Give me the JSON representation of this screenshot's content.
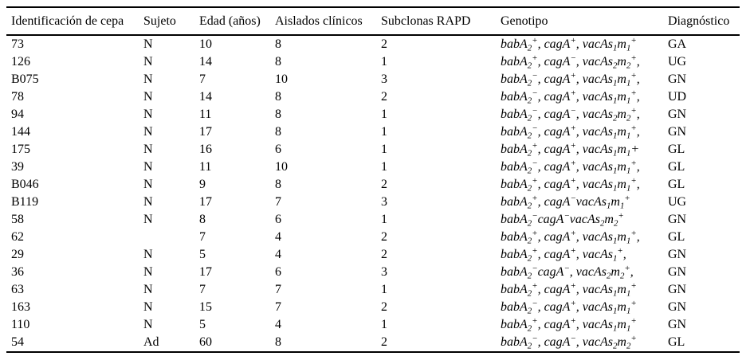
{
  "colors": {
    "text": "#000000",
    "background": "#ffffff",
    "rule": "#000000"
  },
  "table": {
    "columns": [
      "Identificación de cepa",
      "Sujeto",
      "Edad (años)",
      "Aislados clínicos",
      "Subclonas RAPD",
      "Genotipo",
      "Diagnóstico"
    ],
    "rows": [
      {
        "id": "73",
        "sujeto": "N",
        "edad": "10",
        "aislados": "8",
        "subclonas": "2",
        "genotipo": "babA₂⁺, cagA⁺, vacAs₁m₁⁺",
        "diagnostico": "GA"
      },
      {
        "id": "126",
        "sujeto": "N",
        "edad": "14",
        "aislados": "8",
        "subclonas": "1",
        "genotipo": "babA₂⁺, cagA⁻, vacAs₂m₂⁺,",
        "diagnostico": "UG"
      },
      {
        "id": "B075",
        "sujeto": "N",
        "edad": "7",
        "aislados": "10",
        "subclonas": "3",
        "genotipo": "babA₂⁻, cagA⁺, vacAs₁m₁⁺,",
        "diagnostico": "GN"
      },
      {
        "id": "78",
        "sujeto": "N",
        "edad": "14",
        "aislados": "8",
        "subclonas": "2",
        "genotipo": "babA₂⁻, cagA⁺, vacAs₁m₁⁺,",
        "diagnostico": "UD"
      },
      {
        "id": "94",
        "sujeto": "N",
        "edad": "11",
        "aislados": "8",
        "subclonas": "1",
        "genotipo": "babA₂⁻, cagA⁻, vacAs₂m₂⁺,",
        "diagnostico": "GN"
      },
      {
        "id": "144",
        "sujeto": "N",
        "edad": "17",
        "aislados": "8",
        "subclonas": "1",
        "genotipo": "babA₂⁻, cagA⁺, vacAs₁m₁⁺,",
        "diagnostico": "GN"
      },
      {
        "id": "175",
        "sujeto": "N",
        "edad": "16",
        "aislados": "6",
        "subclonas": "1",
        "genotipo": "babA₂⁺, cagA⁺, vacAs₁m₁+",
        "diagnostico": "GL"
      },
      {
        "id": "39",
        "sujeto": "N",
        "edad": "11",
        "aislados": "10",
        "subclonas": "1",
        "genotipo": "babA₂⁻, cagA⁺, vacAs₁m₁⁺,",
        "diagnostico": "GL"
      },
      {
        "id": "B046",
        "sujeto": "N",
        "edad": "9",
        "aislados": "8",
        "subclonas": "2",
        "genotipo": "babA₂⁺, cagA⁺, vacAs₁m₁⁺,",
        "diagnostico": "GL"
      },
      {
        "id": "B119",
        "sujeto": "N",
        "edad": "17",
        "aislados": "7",
        "subclonas": "3",
        "genotipo": "babA₂⁺, cagA⁻vacAs₁m₁⁺",
        "diagnostico": "UG"
      },
      {
        "id": "58",
        "sujeto": "N",
        "edad": "8",
        "aislados": "6",
        "subclonas": "1",
        "genotipo": "babA₂⁻cagA⁻vacAs₂m₂⁺",
        "diagnostico": "GN"
      },
      {
        "id": "62",
        "sujeto": "",
        "edad": "7",
        "aislados": "4",
        "subclonas": "2",
        "genotipo": "babA₂⁺, cagA⁺, vacAs₁m₁⁺,",
        "diagnostico": "GL"
      },
      {
        "id": "29",
        "sujeto": "N",
        "edad": "5",
        "aislados": "4",
        "subclonas": "2",
        "genotipo": "babA₂⁺, cagA⁺, vacAs₁⁺,",
        "diagnostico": "GN"
      },
      {
        "id": "36",
        "sujeto": "N",
        "edad": "17",
        "aislados": "6",
        "subclonas": "3",
        "genotipo": "babA₂⁻cagA⁻, vacAs₂m₂⁺,",
        "diagnostico": "GN"
      },
      {
        "id": "63",
        "sujeto": "N",
        "edad": "7",
        "aislados": "7",
        "subclonas": "1",
        "genotipo": "babA₂⁺, cagA⁺, vacAs₁m₁⁺",
        "diagnostico": "GN"
      },
      {
        "id": "163",
        "sujeto": "N",
        "edad": "15",
        "aislados": "7",
        "subclonas": "2",
        "genotipo": "babA₂⁻, cagA⁺, vacAs₁m₁⁺",
        "diagnostico": "GN"
      },
      {
        "id": "110",
        "sujeto": "N",
        "edad": "5",
        "aislados": "4",
        "subclonas": "1",
        "genotipo": "babA₂⁺, cagA⁺, vacAs₁m₁⁺",
        "diagnostico": "GN"
      },
      {
        "id": "54",
        "sujeto": "Ad",
        "edad": "60",
        "aislados": "8",
        "subclonas": "2",
        "genotipo": "babA₂⁻, cagA⁻, vacAs₂m₂⁺",
        "diagnostico": "GL"
      }
    ]
  }
}
